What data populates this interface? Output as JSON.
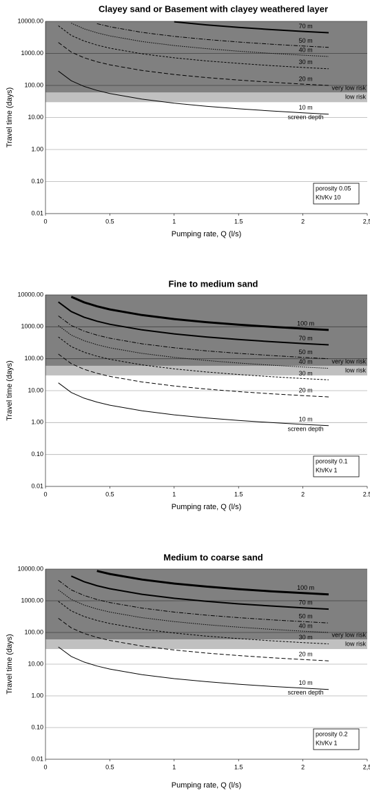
{
  "chart_data": [
    {
      "type": "line",
      "title": "Clayey sand or Basement with clayey weathered layer",
      "y_label": "Travel time (days)",
      "x_label": "Pumping rate, Q (l/s)",
      "log": true,
      "grid": true,
      "ylim": [
        0.01,
        10000
      ],
      "xlim": [
        0,
        2.5
      ],
      "yticks": [
        {
          "value": 10000,
          "label": "10000.00"
        },
        {
          "value": 1000,
          "label": "1000.00"
        },
        {
          "value": 100,
          "label": "100.00"
        },
        {
          "value": 10,
          "label": "10.00"
        },
        {
          "value": 1,
          "label": "1.00"
        },
        {
          "value": 0.1,
          "label": "0.10"
        },
        {
          "value": 0.01,
          "label": "0.01"
        }
      ],
      "xticks": [
        0,
        0.5,
        1,
        1.5,
        2,
        {
          "value": 2.5,
          "label": "2,5"
        }
      ],
      "bands": [
        {
          "name": "very low risk",
          "from": 60,
          "to": 10000,
          "color": "#808080"
        },
        {
          "name": "low risk",
          "from": 30,
          "to": 60,
          "color": "#c0c0c0"
        }
      ],
      "annotation": "screen depth",
      "parameters": [
        "porosity 0.05",
        "Kh/Kv    10"
      ],
      "x": [
        0.1,
        0.2,
        0.3,
        0.4,
        0.5,
        0.75,
        1,
        1.25,
        1.5,
        1.75,
        2,
        2.2
      ],
      "series": [
        {
          "name": "10 m",
          "color": "#000000",
          "line_style": "thin",
          "values": [
            280,
            140,
            93.3,
            70,
            56,
            37.3,
            28,
            22.4,
            18.7,
            16,
            14,
            12.7
          ]
        },
        {
          "name": "20 m",
          "color": "#000000",
          "line_style": "dashed",
          "values": [
            2200,
            1100,
            733,
            550,
            440,
            293,
            220,
            176,
            147,
            126,
            110,
            100
          ]
        },
        {
          "name": "30 m",
          "color": "#000000",
          "line_style": "short-dashed",
          "values": [
            7300,
            3650,
            2433,
            1825,
            1460,
            973,
            730,
            584,
            487,
            417,
            365,
            332
          ]
        },
        {
          "name": "40 m",
          "color": "#000000",
          "line_style": "dotted",
          "values": [
            null,
            8800,
            5867,
            4400,
            3520,
            2347,
            1760,
            1408,
            1173,
            1006,
            880,
            800
          ]
        },
        {
          "name": "50 m",
          "color": "#000000",
          "line_style": "dash-dot",
          "values": [
            null,
            null,
            null,
            8500,
            6800,
            4533,
            3400,
            2720,
            2267,
            1943,
            1700,
            1545
          ]
        },
        {
          "name": "70 m",
          "color": "#000000",
          "line_style": "medium",
          "values": [
            null,
            null,
            null,
            null,
            null,
            null,
            9700,
            7760,
            6467,
            5543,
            4850,
            4409
          ]
        }
      ]
    },
    {
      "type": "line",
      "title": "Fine to medium sand",
      "y_label": "Travel time (days)",
      "x_label": "Pumping rate, Q (l/s)",
      "log": true,
      "grid": true,
      "ylim": [
        0.01,
        10000
      ],
      "xlim": [
        0,
        2.5
      ],
      "yticks": [
        {
          "value": 10000,
          "label": "10000.00"
        },
        {
          "value": 1000,
          "label": "1000.00"
        },
        {
          "value": 100,
          "label": "100.00"
        },
        {
          "value": 10,
          "label": "10.00"
        },
        {
          "value": 1,
          "label": "1.00"
        },
        {
          "value": 0.1,
          "label": "0.10"
        },
        {
          "value": 0.01,
          "label": "0.01"
        }
      ],
      "xticks": [
        0,
        0.5,
        1,
        1.5,
        2,
        2.5
      ],
      "bands": [
        {
          "name": "very low risk",
          "from": 60,
          "to": 10000,
          "color": "#808080"
        },
        {
          "name": "low risk",
          "from": 30,
          "to": 60,
          "color": "#c0c0c0"
        }
      ],
      "annotation": "screen depth",
      "parameters": [
        "porosity 0.1",
        "Kh/Kv     1"
      ],
      "x": [
        0.1,
        0.2,
        0.3,
        0.4,
        0.5,
        0.75,
        1,
        1.25,
        1.5,
        1.75,
        2,
        2.2
      ],
      "series": [
        {
          "name": "10 m",
          "color": "#000000",
          "line_style": "thin",
          "values": [
            17.5,
            8.75,
            5.83,
            4.38,
            3.5,
            2.33,
            1.75,
            1.4,
            1.17,
            1.0,
            0.875,
            0.8
          ]
        },
        {
          "name": "20 m",
          "color": "#000000",
          "line_style": "dashed",
          "values": [
            140,
            70,
            46.7,
            35,
            28,
            18.7,
            14,
            11.2,
            9.33,
            8,
            7,
            6.36
          ]
        },
        {
          "name": "30 m",
          "color": "#000000",
          "line_style": "short-dashed",
          "values": [
            480,
            240,
            160,
            120,
            96,
            64,
            48,
            38.4,
            32,
            27.4,
            24,
            21.8
          ]
        },
        {
          "name": "40 m",
          "color": "#000000",
          "line_style": "dotted",
          "values": [
            1100,
            550,
            367,
            275,
            220,
            147,
            110,
            88,
            73.3,
            62.9,
            55,
            50
          ]
        },
        {
          "name": "50 m",
          "color": "#000000",
          "line_style": "dash-dot",
          "values": [
            2200,
            1100,
            733,
            550,
            440,
            293,
            220,
            176,
            147,
            126,
            110,
            100
          ]
        },
        {
          "name": "70 m",
          "color": "#000000",
          "line_style": "medium",
          "values": [
            6000,
            3000,
            2000,
            1500,
            1200,
            800,
            600,
            480,
            400,
            343,
            300,
            273
          ]
        },
        {
          "name": "100 m",
          "color": "#000000",
          "line_style": "thick",
          "values": [
            null,
            8750,
            5833,
            4375,
            3500,
            2333,
            1750,
            1400,
            1167,
            1000,
            875,
            795
          ]
        }
      ]
    },
    {
      "type": "line",
      "title": "Medium to coarse sand",
      "y_label": "Travel time (days)",
      "x_label": "Pumping rate, Q (l/s)",
      "log": true,
      "grid": true,
      "ylim": [
        0.01,
        10000
      ],
      "xlim": [
        0,
        2.5
      ],
      "yticks": [
        {
          "value": 10000,
          "label": "10000.00"
        },
        {
          "value": 1000,
          "label": "1000.00"
        },
        {
          "value": 100,
          "label": "100.00"
        },
        {
          "value": 10,
          "label": "10.00"
        },
        {
          "value": 1,
          "label": "1.00"
        },
        {
          "value": 0.1,
          "label": "0.10"
        },
        {
          "value": 0.01,
          "label": "0.01"
        }
      ],
      "xticks": [
        0,
        0.5,
        1,
        1.5,
        2,
        {
          "value": 2.5,
          "label": "2,5"
        }
      ],
      "bands": [
        {
          "name": "very low risk",
          "from": 60,
          "to": 10000,
          "color": "#808080"
        },
        {
          "name": "low risk",
          "from": 30,
          "to": 60,
          "color": "#c0c0c0"
        }
      ],
      "annotation": "screen depth",
      "parameters": [
        "porosity 0.2",
        "Kh/Kv     1"
      ],
      "x": [
        0.1,
        0.2,
        0.3,
        0.4,
        0.5,
        0.75,
        1,
        1.25,
        1.5,
        1.75,
        2,
        2.2
      ],
      "series": [
        {
          "name": "10 m",
          "color": "#000000",
          "line_style": "thin",
          "values": [
            35,
            17.5,
            11.7,
            8.75,
            7,
            4.67,
            3.5,
            2.8,
            2.33,
            2,
            1.75,
            1.59
          ]
        },
        {
          "name": "20 m",
          "color": "#000000",
          "line_style": "dashed",
          "values": [
            280,
            140,
            93.3,
            70,
            56,
            37.3,
            28,
            22.4,
            18.7,
            16,
            14,
            12.7
          ]
        },
        {
          "name": "30 m",
          "color": "#000000",
          "line_style": "short-dashed",
          "values": [
            960,
            480,
            320,
            240,
            192,
            128,
            96,
            76.8,
            64,
            54.9,
            48,
            43.6
          ]
        },
        {
          "name": "40 m",
          "color": "#000000",
          "line_style": "dotted",
          "values": [
            2200,
            1100,
            733,
            550,
            440,
            293,
            220,
            176,
            147,
            126,
            110,
            100
          ]
        },
        {
          "name": "50 m",
          "color": "#000000",
          "line_style": "dash-dot",
          "values": [
            4400,
            2200,
            1467,
            1100,
            880,
            587,
            440,
            352,
            293,
            251,
            220,
            200
          ]
        },
        {
          "name": "70 m",
          "color": "#000000",
          "line_style": "medium",
          "values": [
            null,
            6000,
            4000,
            3000,
            2400,
            1600,
            1200,
            960,
            800,
            686,
            600,
            545
          ]
        },
        {
          "name": "100 m",
          "color": "#000000",
          "line_style": "thick",
          "values": [
            null,
            null,
            null,
            8750,
            7000,
            4667,
            3500,
            2800,
            2333,
            2000,
            1750,
            1591
          ]
        }
      ]
    }
  ]
}
